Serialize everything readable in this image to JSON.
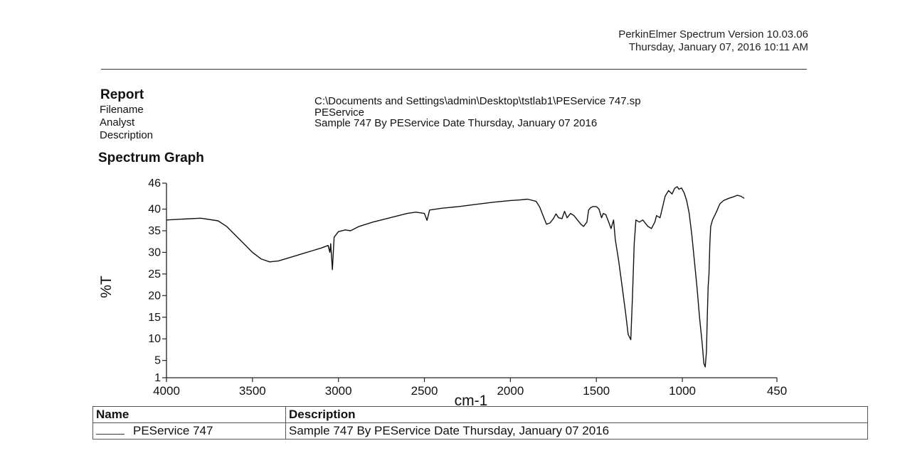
{
  "header": {
    "software": "PerkinElmer Spectrum Version 10.03.06",
    "datetime": "Thursday, January 07, 2016 10:11 AM"
  },
  "report": {
    "title": "Report",
    "fields": [
      {
        "label": "Filename",
        "value": "C:\\Documents and Settings\\admin\\Desktop\\tstlab1\\PEService 747.sp"
      },
      {
        "label": "Analyst",
        "value": "PEService"
      },
      {
        "label": "Description",
        "value": "Sample 747 By PEService Date Thursday, January 07 2016"
      }
    ]
  },
  "section_title": "Spectrum Graph",
  "chart_data": {
    "type": "line",
    "title": "",
    "xlabel": "cm-1",
    "ylabel": "%T",
    "xlim": [
      4000,
      450
    ],
    "ylim": [
      1,
      46
    ],
    "x_ticks": [
      4000,
      3500,
      3000,
      2500,
      2000,
      1500,
      1000,
      450
    ],
    "y_ticks": [
      46,
      40,
      35,
      30,
      25,
      20,
      15,
      10,
      5,
      1
    ],
    "grid": false,
    "x_reversed": true,
    "series": [
      {
        "name": "PEService 747",
        "points": [
          [
            4000,
            37.5
          ],
          [
            3900,
            37.7
          ],
          [
            3800,
            37.9
          ],
          [
            3700,
            37.3
          ],
          [
            3650,
            36.0
          ],
          [
            3600,
            34.0
          ],
          [
            3550,
            32.0
          ],
          [
            3500,
            30.0
          ],
          [
            3450,
            28.5
          ],
          [
            3400,
            27.8
          ],
          [
            3350,
            28.0
          ],
          [
            3300,
            28.6
          ],
          [
            3250,
            29.2
          ],
          [
            3200,
            29.8
          ],
          [
            3150,
            30.4
          ],
          [
            3100,
            31.0
          ],
          [
            3060,
            31.6
          ],
          [
            3050,
            30.0
          ],
          [
            3045,
            32.0
          ],
          [
            3035,
            26.0
          ],
          [
            3025,
            33.5
          ],
          [
            3000,
            34.8
          ],
          [
            2960,
            35.2
          ],
          [
            2930,
            35.0
          ],
          [
            2880,
            36.0
          ],
          [
            2800,
            37.0
          ],
          [
            2700,
            38.0
          ],
          [
            2600,
            39.0
          ],
          [
            2550,
            39.3
          ],
          [
            2500,
            39.0
          ],
          [
            2485,
            37.4
          ],
          [
            2470,
            39.8
          ],
          [
            2400,
            40.2
          ],
          [
            2300,
            40.6
          ],
          [
            2200,
            41.1
          ],
          [
            2100,
            41.6
          ],
          [
            2000,
            42.0
          ],
          [
            1950,
            42.1
          ],
          [
            1900,
            42.3
          ],
          [
            1850,
            41.8
          ],
          [
            1830,
            40.5
          ],
          [
            1810,
            38.5
          ],
          [
            1790,
            36.5
          ],
          [
            1770,
            36.8
          ],
          [
            1750,
            37.8
          ],
          [
            1735,
            38.9
          ],
          [
            1720,
            38.0
          ],
          [
            1700,
            37.8
          ],
          [
            1685,
            39.5
          ],
          [
            1670,
            38.0
          ],
          [
            1650,
            39.0
          ],
          [
            1630,
            38.5
          ],
          [
            1610,
            37.5
          ],
          [
            1590,
            36.5
          ],
          [
            1575,
            36.0
          ],
          [
            1555,
            37.0
          ],
          [
            1545,
            39.8
          ],
          [
            1535,
            40.3
          ],
          [
            1520,
            40.6
          ],
          [
            1500,
            40.6
          ],
          [
            1485,
            40.0
          ],
          [
            1470,
            38.0
          ],
          [
            1460,
            39.0
          ],
          [
            1445,
            38.7
          ],
          [
            1430,
            37.2
          ],
          [
            1415,
            35.5
          ],
          [
            1400,
            37.5
          ],
          [
            1390,
            33.0
          ],
          [
            1370,
            28.0
          ],
          [
            1350,
            22.0
          ],
          [
            1330,
            16.0
          ],
          [
            1315,
            11.0
          ],
          [
            1300,
            9.8
          ],
          [
            1290,
            20.0
          ],
          [
            1280,
            32.0
          ],
          [
            1270,
            37.5
          ],
          [
            1250,
            37.0
          ],
          [
            1230,
            37.5
          ],
          [
            1200,
            36.0
          ],
          [
            1180,
            35.5
          ],
          [
            1160,
            37.0
          ],
          [
            1150,
            38.5
          ],
          [
            1130,
            38.0
          ],
          [
            1115,
            40.5
          ],
          [
            1100,
            43.0
          ],
          [
            1080,
            44.3
          ],
          [
            1060,
            43.5
          ],
          [
            1045,
            44.8
          ],
          [
            1030,
            45.2
          ],
          [
            1020,
            44.6
          ],
          [
            1005,
            44.9
          ],
          [
            990,
            43.8
          ],
          [
            975,
            42.0
          ],
          [
            960,
            39.0
          ],
          [
            945,
            34.0
          ],
          [
            930,
            28.0
          ],
          [
            915,
            22.0
          ],
          [
            900,
            15.0
          ],
          [
            885,
            9.0
          ],
          [
            875,
            4.3
          ],
          [
            867,
            3.5
          ],
          [
            860,
            7.0
          ],
          [
            855,
            15.0
          ],
          [
            850,
            22.0
          ],
          [
            845,
            25.0
          ],
          [
            840,
            32.0
          ],
          [
            835,
            36.0
          ],
          [
            825,
            37.5
          ],
          [
            815,
            38.3
          ],
          [
            800,
            39.5
          ],
          [
            790,
            40.5
          ],
          [
            780,
            41.3
          ],
          [
            760,
            42.0
          ],
          [
            730,
            42.5
          ],
          [
            700,
            42.9
          ],
          [
            680,
            43.2
          ],
          [
            660,
            43.0
          ],
          [
            640,
            42.5
          ]
        ]
      }
    ]
  },
  "results_table": {
    "headers": [
      "Name",
      "Description"
    ],
    "rows": [
      {
        "name": "PEService 747",
        "description": "Sample 747 By PEService Date Thursday, January 07 2016"
      }
    ]
  }
}
